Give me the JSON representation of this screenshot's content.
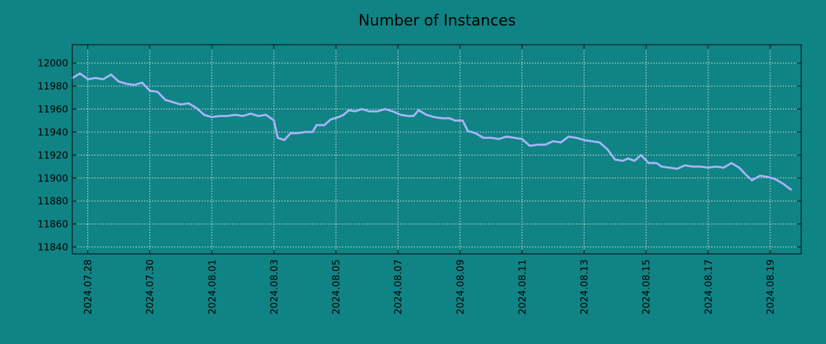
{
  "colors": {
    "background": "#108384",
    "line": "#a7b4fc",
    "grid": "#c9d7d0",
    "axis": "#000000"
  },
  "chart_data": {
    "type": "line",
    "title": "Number of Instances",
    "xlabel": "",
    "ylabel": "",
    "x_range": [
      "2024-07-27 12:00",
      "2024-08-20 00:00"
    ],
    "ylim": [
      11834,
      12016
    ],
    "grid": true,
    "legend": "none",
    "x_tick_labels": [
      "2024.07.28",
      "2024.07.30",
      "2024.08.01",
      "2024.08.03",
      "2024.08.05",
      "2024.08.07",
      "2024.08.09",
      "2024.08.11",
      "2024.08.13",
      "2024.08.15",
      "2024.08.17",
      "2024.08.19"
    ],
    "x_tick_dates": [
      "2024-07-28",
      "2024-07-30",
      "2024-08-01",
      "2024-08-03",
      "2024-08-05",
      "2024-08-07",
      "2024-08-09",
      "2024-08-11",
      "2024-08-13",
      "2024-08-15",
      "2024-08-17",
      "2024-08-19"
    ],
    "y_ticks": [
      11840,
      11860,
      11880,
      11900,
      11920,
      11940,
      11960,
      11980,
      12000
    ],
    "y_tick_labels": [
      "11840",
      "11860",
      "11880",
      "11900",
      "11920",
      "11940",
      "11960",
      "11980",
      "12000"
    ],
    "series": [
      {
        "name": "",
        "points": [
          [
            "2024-07-27 12:00",
            11987
          ],
          [
            "2024-07-27 18:00",
            11991
          ],
          [
            "2024-07-28 00:00",
            11986
          ],
          [
            "2024-07-28 06:00",
            11987
          ],
          [
            "2024-07-28 12:00",
            11986
          ],
          [
            "2024-07-28 18:00",
            11990
          ],
          [
            "2024-07-29 00:00",
            11984
          ],
          [
            "2024-07-29 06:00",
            11982
          ],
          [
            "2024-07-29 12:00",
            11981
          ],
          [
            "2024-07-29 18:00",
            11983
          ],
          [
            "2024-07-30 00:00",
            11976
          ],
          [
            "2024-07-30 06:00",
            11975
          ],
          [
            "2024-07-30 12:00",
            11968
          ],
          [
            "2024-07-30 18:00",
            11966
          ],
          [
            "2024-07-31 00:00",
            11964
          ],
          [
            "2024-07-31 06:00",
            11965
          ],
          [
            "2024-07-31 12:00",
            11961
          ],
          [
            "2024-07-31 18:00",
            11955
          ],
          [
            "2024-08-01 00:00",
            11953
          ],
          [
            "2024-08-01 06:00",
            11954
          ],
          [
            "2024-08-01 12:00",
            11954
          ],
          [
            "2024-08-01 18:00",
            11955
          ],
          [
            "2024-08-02 00:00",
            11954
          ],
          [
            "2024-08-02 06:00",
            11956
          ],
          [
            "2024-08-02 12:00",
            11954
          ],
          [
            "2024-08-02 18:00",
            11955
          ],
          [
            "2024-08-03 00:00",
            11950
          ],
          [
            "2024-08-03 03:00",
            11935
          ],
          [
            "2024-08-03 08:00",
            11933
          ],
          [
            "2024-08-03 13:00",
            11939
          ],
          [
            "2024-08-03 18:00",
            11939
          ],
          [
            "2024-08-04 00:00",
            11940
          ],
          [
            "2024-08-04 06:00",
            11940
          ],
          [
            "2024-08-04 09:00",
            11946
          ],
          [
            "2024-08-04 15:00",
            11946
          ],
          [
            "2024-08-04 20:00",
            11951
          ],
          [
            "2024-08-05 02:00",
            11953
          ],
          [
            "2024-08-05 06:00",
            11955
          ],
          [
            "2024-08-05 10:00",
            11959
          ],
          [
            "2024-08-05 15:00",
            11958
          ],
          [
            "2024-08-05 20:00",
            11960
          ],
          [
            "2024-08-06 02:00",
            11958
          ],
          [
            "2024-08-06 08:00",
            11958
          ],
          [
            "2024-08-06 14:00",
            11960
          ],
          [
            "2024-08-06 20:00",
            11958
          ],
          [
            "2024-08-07 02:00",
            11955
          ],
          [
            "2024-08-07 08:00",
            11954
          ],
          [
            "2024-08-07 12:00",
            11954
          ],
          [
            "2024-08-07 16:00",
            11959
          ],
          [
            "2024-08-07 22:00",
            11955
          ],
          [
            "2024-08-08 04:00",
            11953
          ],
          [
            "2024-08-08 10:00",
            11952
          ],
          [
            "2024-08-08 16:00",
            11952
          ],
          [
            "2024-08-08 20:00",
            11950
          ],
          [
            "2024-08-09 02:00",
            11950
          ],
          [
            "2024-08-09 06:00",
            11941
          ],
          [
            "2024-08-09 12:00",
            11939
          ],
          [
            "2024-08-09 18:00",
            11935
          ],
          [
            "2024-08-10 00:00",
            11935
          ],
          [
            "2024-08-10 06:00",
            11934
          ],
          [
            "2024-08-10 12:00",
            11936
          ],
          [
            "2024-08-10 18:00",
            11935
          ],
          [
            "2024-08-11 00:00",
            11934
          ],
          [
            "2024-08-11 06:00",
            11928
          ],
          [
            "2024-08-11 12:00",
            11929
          ],
          [
            "2024-08-11 18:00",
            11929
          ],
          [
            "2024-08-12 00:00",
            11932
          ],
          [
            "2024-08-12 06:00",
            11931
          ],
          [
            "2024-08-12 12:00",
            11936
          ],
          [
            "2024-08-12 18:00",
            11935
          ],
          [
            "2024-08-13 00:00",
            11933
          ],
          [
            "2024-08-13 06:00",
            11932
          ],
          [
            "2024-08-13 12:00",
            11931
          ],
          [
            "2024-08-13 18:00",
            11925
          ],
          [
            "2024-08-14 00:00",
            11916
          ],
          [
            "2024-08-14 06:00",
            11915
          ],
          [
            "2024-08-14 10:00",
            11917
          ],
          [
            "2024-08-14 15:00",
            11915
          ],
          [
            "2024-08-14 20:00",
            11920
          ],
          [
            "2024-08-15 02:00",
            11913
          ],
          [
            "2024-08-15 08:00",
            11913
          ],
          [
            "2024-08-15 12:00",
            11910
          ],
          [
            "2024-08-15 18:00",
            11909
          ],
          [
            "2024-08-16 00:00",
            11908
          ],
          [
            "2024-08-16 06:00",
            11911
          ],
          [
            "2024-08-16 12:00",
            11910
          ],
          [
            "2024-08-16 18:00",
            11910
          ],
          [
            "2024-08-17 00:00",
            11909
          ],
          [
            "2024-08-17 06:00",
            11910
          ],
          [
            "2024-08-17 12:00",
            11909
          ],
          [
            "2024-08-17 18:00",
            11913
          ],
          [
            "2024-08-18 00:00",
            11909
          ],
          [
            "2024-08-18 06:00",
            11902
          ],
          [
            "2024-08-18 10:00",
            11898
          ],
          [
            "2024-08-18 16:00",
            11902
          ],
          [
            "2024-08-18 22:00",
            11901
          ],
          [
            "2024-08-19 04:00",
            11899
          ],
          [
            "2024-08-19 10:00",
            11895
          ],
          [
            "2024-08-19 16:00",
            11890
          ]
        ]
      }
    ]
  }
}
